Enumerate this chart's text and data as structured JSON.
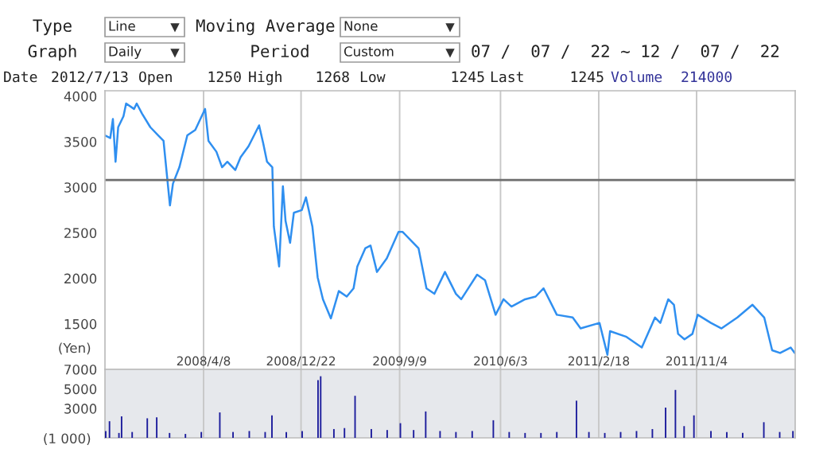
{
  "chart_data": [
    {
      "type": "line",
      "annotations": [
        "Type",
        "Line",
        "Moving Average",
        "None",
        "Graph",
        "Daily",
        "Period",
        "Custom",
        "07 /  07 /  22 ~ 12 /  07 /  22",
        "Date",
        "2012/7/13",
        "Open",
        "1250",
        "High",
        "1268",
        "Low",
        "1245",
        "Last",
        "1245",
        "Volume",
        "214000"
      ],
      "ylabel": "(Yen)",
      "x": [
        "2007-07-22",
        "2007-08-05",
        "2007-08-12",
        "2007-08-19",
        "2007-08-26",
        "2007-09-09",
        "2007-09-16",
        "2007-10-07",
        "2007-10-14",
        "2007-10-28",
        "2007-11-19",
        "2007-12-10",
        "2007-12-24",
        "2008-01-10",
        "2008-01-18",
        "2008-02-04",
        "2008-02-25",
        "2008-03-17",
        "2008-04-12",
        "2008-04-21",
        "2008-05-12",
        "2008-05-27",
        "2008-06-10",
        "2008-07-01",
        "2008-07-15",
        "2008-08-05",
        "2008-09-02",
        "2008-09-13",
        "2008-09-23",
        "2008-10-07",
        "2008-10-11",
        "2008-10-25",
        "2008-11-04",
        "2008-11-11",
        "2008-11-23",
        "2008-12-03",
        "2008-12-24",
        "2009-01-04",
        "2009-01-21",
        "2009-02-04",
        "2009-02-18",
        "2009-03-11",
        "2009-04-01",
        "2009-04-22",
        "2009-05-10",
        "2009-05-20",
        "2009-06-10",
        "2009-06-24",
        "2009-07-11",
        "2009-08-06",
        "2009-09-06",
        "2009-09-17",
        "2009-10-29",
        "2009-11-19",
        "2009-12-10",
        "2010-01-07",
        "2010-02-05",
        "2010-02-19",
        "2010-03-05",
        "2010-04-02",
        "2010-04-23",
        "2010-05-21",
        "2010-06-11",
        "2010-07-02",
        "2010-08-07",
        "2010-09-04",
        "2010-09-25",
        "2010-10-30",
        "2010-12-11",
        "2011-01-01",
        "2011-02-20",
        "2011-03-13",
        "2011-03-20",
        "2011-05-01",
        "2011-06-12",
        "2011-07-17",
        "2011-07-31",
        "2011-08-21",
        "2011-09-05",
        "2011-09-16",
        "2011-10-03",
        "2011-10-24",
        "2011-11-07",
        "2011-12-12",
        "2012-01-09",
        "2012-02-20",
        "2012-03-31",
        "2012-05-01",
        "2012-05-22",
        "2012-06-12",
        "2012-07-10",
        "2012-07-21"
      ],
      "series": [
        {
          "color": "#2f8ff0",
          "values": [
            3570,
            3540,
            3750,
            3280,
            3660,
            3780,
            3920,
            3860,
            3920,
            3810,
            3660,
            3570,
            3510,
            2800,
            3040,
            3220,
            3570,
            3630,
            3860,
            3510,
            3390,
            3220,
            3280,
            3190,
            3330,
            3450,
            3680,
            3480,
            3280,
            3220,
            2570,
            2130,
            3010,
            2630,
            2390,
            2720,
            2750,
            2890,
            2570,
            2010,
            1770,
            1560,
            1860,
            1800,
            1890,
            2130,
            2330,
            2360,
            2070,
            2220,
            2510,
            2510,
            2330,
            1890,
            1830,
            2070,
            1830,
            1770,
            1860,
            2040,
            1980,
            1600,
            1770,
            1690,
            1770,
            1800,
            1890,
            1600,
            1570,
            1450,
            1510,
            1160,
            1420,
            1360,
            1240,
            1570,
            1510,
            1770,
            1710,
            1390,
            1330,
            1390,
            1600,
            1510,
            1450,
            1570,
            1710,
            1570,
            1210,
            1180,
            1240,
            1180
          ]
        }
      ],
      "xlim": [
        "2007-07-22",
        "2012-07-22"
      ],
      "xticks": [
        {
          "value": "2008-04-08",
          "label": "2008/4/8"
        },
        {
          "value": "2008-12-22",
          "label": "2008/12/22"
        },
        {
          "value": "2009-09-09",
          "label": "2009/9/9"
        },
        {
          "value": "2010-06-03",
          "label": "2010/6/3"
        },
        {
          "value": "2011-02-18",
          "label": "2011/2/18"
        },
        {
          "value": "2011-11-04",
          "label": "2011/11/4"
        }
      ],
      "ylim": [
        1000,
        4060
      ],
      "yticks": [
        1500,
        2000,
        2500,
        3000,
        3500,
        4000
      ],
      "ref_lines": [
        {
          "axis": "y",
          "value": 3080,
          "color": "#6e6e6e"
        }
      ],
      "grid": "x",
      "line_style": "solid"
    },
    {
      "type": "bar",
      "ylabel": "(1 000)",
      "x": [
        "2007-07-22",
        "2007-08-01",
        "2007-08-26",
        "2007-09-02",
        "2007-09-30",
        "2007-11-09",
        "2007-12-04",
        "2008-01-07",
        "2008-02-18",
        "2008-03-31",
        "2008-05-19",
        "2008-06-23",
        "2008-08-05",
        "2008-09-16",
        "2008-10-04",
        "2008-11-11",
        "2008-12-23",
        "2009-02-03",
        "2009-02-10",
        "2009-03-17",
        "2009-04-14",
        "2009-05-12",
        "2009-06-24",
        "2009-08-05",
        "2009-09-09",
        "2009-10-14",
        "2009-11-15",
        "2009-12-23",
        "2010-02-03",
        "2010-03-18",
        "2010-05-13",
        "2010-06-24",
        "2010-08-05",
        "2010-09-16",
        "2010-10-28",
        "2010-12-19",
        "2011-01-21",
        "2011-03-04",
        "2011-04-15",
        "2011-05-27",
        "2011-07-08",
        "2011-08-12",
        "2011-09-07",
        "2011-09-30",
        "2011-10-26",
        "2011-12-10",
        "2012-01-21",
        "2012-03-03",
        "2012-04-28",
        "2012-06-09",
        "2012-07-14"
      ],
      "series": [
        {
          "color": "#1c1c9c",
          "values": [
            700,
            1700,
            500,
            2200,
            600,
            2000,
            2100,
            500,
            400,
            600,
            2600,
            600,
            700,
            600,
            2300,
            600,
            700,
            5900,
            6300,
            900,
            1000,
            4300,
            900,
            800,
            1500,
            800,
            2700,
            700,
            600,
            700,
            1800,
            600,
            500,
            500,
            600,
            3800,
            600,
            500,
            600,
            700,
            900,
            3100,
            4900,
            1200,
            2300,
            700,
            600,
            500,
            1600,
            600,
            700
          ]
        }
      ],
      "xlim": [
        "2007-07-22",
        "2012-07-22"
      ],
      "xticks": [
        {
          "value": "2008-04-08",
          "label": null
        },
        {
          "value": "2008-12-22",
          "label": null
        },
        {
          "value": "2009-09-09",
          "label": null
        },
        {
          "value": "2010-06-03",
          "label": null
        },
        {
          "value": "2011-02-18",
          "label": null
        },
        {
          "value": "2011-11-04",
          "label": null
        }
      ],
      "ylim": [
        0,
        7000
      ],
      "yticks": [
        3000,
        5000,
        7000
      ],
      "grid": "x",
      "tick_labels": "y"
    }
  ]
}
